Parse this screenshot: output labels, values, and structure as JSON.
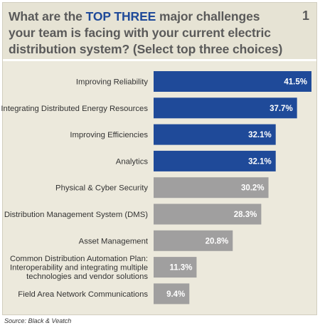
{
  "question": {
    "prefix": "What are the ",
    "highlight": "TOP THREE",
    "suffix": " major challenges your team is facing with your current electric distribution system? (Select top three choices)"
  },
  "figure_number": "1",
  "source": "Source: Black & Veatch",
  "colors": {
    "highlight_bar": "#1f4a99",
    "other_bar": "#a09f9f",
    "panel": "#ece9dc"
  },
  "chart_data": {
    "type": "bar",
    "orientation": "horizontal",
    "categories": [
      [
        "Improving Reliability"
      ],
      [
        "Integrating Distributed Energy Resources"
      ],
      [
        "Improving Efficiencies"
      ],
      [
        "Analytics"
      ],
      [
        "Physical & Cyber Security"
      ],
      [
        "Distribution Management System (DMS)"
      ],
      [
        "Asset Management"
      ],
      [
        "Common Distribution Automation Plan:",
        "Interoperability and integrating multiple",
        "technologies and vendor solutions"
      ],
      [
        "Field Area Network Communications"
      ]
    ],
    "values": [
      41.5,
      37.7,
      32.1,
      32.1,
      30.2,
      28.3,
      20.8,
      11.3,
      9.4
    ],
    "value_labels": [
      "41.5%",
      "37.7%",
      "32.1%",
      "32.1%",
      "30.2%",
      "28.3%",
      "20.8%",
      "11.3%",
      "9.4%"
    ],
    "highlighted_count": 4,
    "unit": "%",
    "xlim": [
      0,
      41.5
    ],
    "grid": false
  }
}
